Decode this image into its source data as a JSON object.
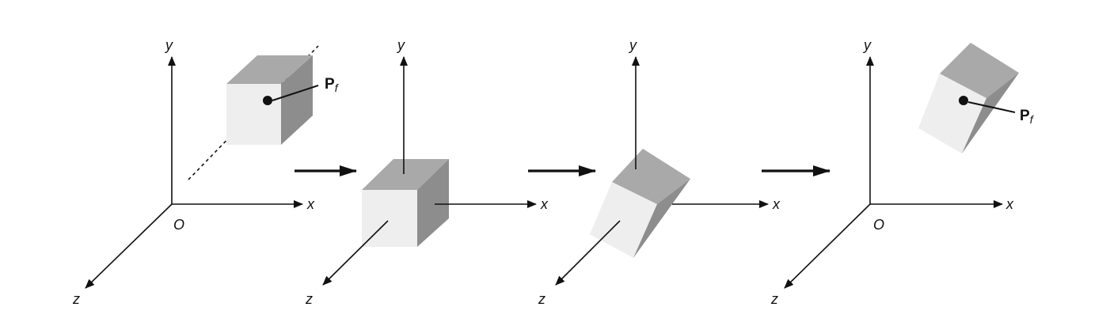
{
  "figure": {
    "panels": [
      {
        "axis_labels": {
          "x": "x",
          "y": "y",
          "z": "z"
        },
        "origin_label": "O",
        "point": {
          "base": "P",
          "subscript": "f"
        }
      },
      {
        "axis_labels": {
          "x": "x",
          "y": "y",
          "z": "z"
        }
      },
      {
        "axis_labels": {
          "x": "x",
          "y": "y",
          "z": "z"
        }
      },
      {
        "axis_labels": {
          "x": "x",
          "y": "y",
          "z": "z"
        },
        "origin_label": "O",
        "point": {
          "base": "P",
          "subscript": "f"
        }
      }
    ],
    "colors": {
      "ink": "#111111",
      "face_top": "#a9a9a9",
      "face_side": "#8d8d8d",
      "face_front": "#eeeeee"
    }
  }
}
